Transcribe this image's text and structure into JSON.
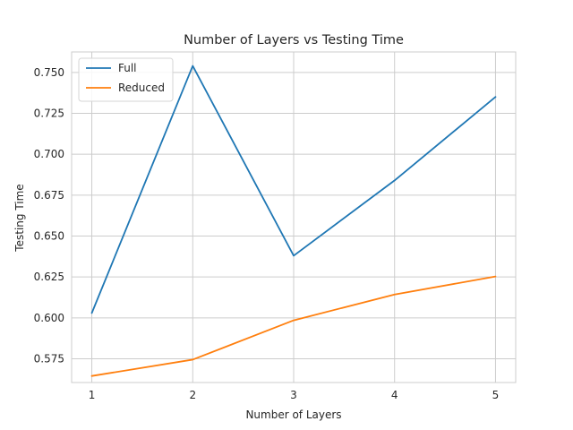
{
  "chart_data": {
    "type": "line",
    "title": "Number of Layers vs Testing Time",
    "xlabel": "Number of Layers",
    "ylabel": "Testing Time",
    "x": [
      1,
      2,
      3,
      4,
      5
    ],
    "xticks": [
      "1",
      "2",
      "3",
      "4",
      "5"
    ],
    "xlim": [
      0.8,
      5.2
    ],
    "ylim": [
      0.5605,
      0.7625
    ],
    "yticks": [
      0.575,
      0.6,
      0.625,
      0.65,
      0.675,
      0.7,
      0.725,
      0.75
    ],
    "ytick_labels": [
      "0.575",
      "0.600",
      "0.625",
      "0.650",
      "0.675",
      "0.700",
      "0.725",
      "0.750"
    ],
    "grid": true,
    "legend_position": "upper-left",
    "series": [
      {
        "name": "Full",
        "color": "#1f77b4",
        "values": [
          0.603,
          0.754,
          0.638,
          0.684,
          0.735
        ]
      },
      {
        "name": "Reduced",
        "color": "#ff7f0e",
        "values": [
          0.5645,
          0.5745,
          0.5985,
          0.6143,
          0.6253
        ]
      }
    ]
  }
}
